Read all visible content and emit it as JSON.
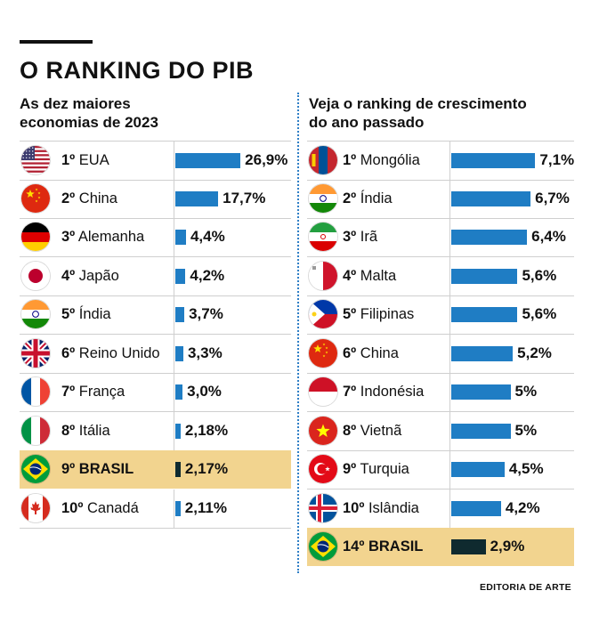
{
  "header": {
    "title": "O RANKING DO PIB"
  },
  "left": {
    "subtitle_line1": "As dez maiores",
    "subtitle_line2": "economias de 2023"
  },
  "right": {
    "subtitle_line1": "Veja o ranking de crescimento",
    "subtitle_line2": "do ano passado"
  },
  "credit": "EDITORIA DE ARTE",
  "colors": {
    "bar": "#1f7dc4",
    "highlight_bar": "#0f2a2f",
    "highlight_row": "#f2d48f"
  },
  "chart_data": [
    {
      "type": "bar",
      "orientation": "horizontal",
      "title": "As dez maiores economias de 2023",
      "unit": "%",
      "items": [
        {
          "rank": "1º",
          "country": "EUA",
          "value": 26.9,
          "label": "26,9%",
          "flag": "usa-flag-icon",
          "highlight": false
        },
        {
          "rank": "2º",
          "country": "China",
          "value": 17.7,
          "label": "17,7%",
          "flag": "china-flag-icon",
          "highlight": false
        },
        {
          "rank": "3º",
          "country": "Alemanha",
          "value": 4.4,
          "label": "4,4%",
          "flag": "germany-flag-icon",
          "highlight": false
        },
        {
          "rank": "4º",
          "country": "Japão",
          "value": 4.2,
          "label": "4,2%",
          "flag": "japan-flag-icon",
          "highlight": false
        },
        {
          "rank": "5º",
          "country": "Índia",
          "value": 3.7,
          "label": "3,7%",
          "flag": "india-flag-icon",
          "highlight": false
        },
        {
          "rank": "6º",
          "country": "Reino Unido",
          "value": 3.3,
          "label": "3,3%",
          "flag": "uk-flag-icon",
          "highlight": false
        },
        {
          "rank": "7º",
          "country": "França",
          "value": 3.0,
          "label": "3,0%",
          "flag": "france-flag-icon",
          "highlight": false
        },
        {
          "rank": "8º",
          "country": "Itália",
          "value": 2.18,
          "label": "2,18%",
          "flag": "italy-flag-icon",
          "highlight": false
        },
        {
          "rank": "9º",
          "country": "BRASIL",
          "value": 2.17,
          "label": "2,17%",
          "flag": "brazil-flag-icon",
          "highlight": true
        },
        {
          "rank": "10º",
          "country": "Canadá",
          "value": 2.11,
          "label": "2,11%",
          "flag": "canada-flag-icon",
          "highlight": false
        }
      ]
    },
    {
      "type": "bar",
      "orientation": "horizontal",
      "title": "Veja o ranking de crescimento do ano passado",
      "unit": "%",
      "items": [
        {
          "rank": "1º",
          "country": "Mongólia",
          "value": 7.1,
          "label": "7,1%",
          "flag": "mongolia-flag-icon",
          "highlight": false
        },
        {
          "rank": "2º",
          "country": "Índia",
          "value": 6.7,
          "label": "6,7%",
          "flag": "india-flag-icon",
          "highlight": false
        },
        {
          "rank": "3º",
          "country": "Irã",
          "value": 6.4,
          "label": "6,4%",
          "flag": "iran-flag-icon",
          "highlight": false
        },
        {
          "rank": "4º",
          "country": "Malta",
          "value": 5.6,
          "label": "5,6%",
          "flag": "malta-flag-icon",
          "highlight": false
        },
        {
          "rank": "5º",
          "country": "Filipinas",
          "value": 5.6,
          "label": "5,6%",
          "flag": "philippines-flag-icon",
          "highlight": false
        },
        {
          "rank": "6º",
          "country": "China",
          "value": 5.2,
          "label": "5,2%",
          "flag": "china-flag-icon",
          "highlight": false
        },
        {
          "rank": "7º",
          "country": "Indonésia",
          "value": 5,
          "label": "5%",
          "flag": "indonesia-flag-icon",
          "highlight": false
        },
        {
          "rank": "8º",
          "country": "Vietnã",
          "value": 5,
          "label": "5%",
          "flag": "vietnam-flag-icon",
          "highlight": false
        },
        {
          "rank": "9º",
          "country": "Turquia",
          "value": 4.5,
          "label": "4,5%",
          "flag": "turkey-flag-icon",
          "highlight": false
        },
        {
          "rank": "10º",
          "country": "Islândia",
          "value": 4.2,
          "label": "4,2%",
          "flag": "iceland-flag-icon",
          "highlight": false
        },
        {
          "rank": "14º",
          "country": "BRASIL",
          "value": 2.9,
          "label": "2,9%",
          "flag": "brazil-flag-icon",
          "highlight": true
        }
      ]
    }
  ]
}
